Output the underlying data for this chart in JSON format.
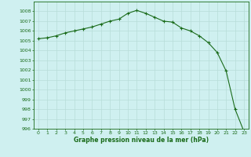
{
  "x": [
    0,
    1,
    2,
    3,
    4,
    5,
    6,
    7,
    8,
    9,
    10,
    11,
    12,
    13,
    14,
    15,
    16,
    17,
    18,
    19,
    20,
    21,
    22,
    23
  ],
  "y": [
    1005.2,
    1005.3,
    1005.5,
    1005.8,
    1006.0,
    1006.2,
    1006.4,
    1006.7,
    1007.0,
    1007.2,
    1007.8,
    1008.1,
    1007.8,
    1007.4,
    1007.0,
    1006.9,
    1006.3,
    1006.0,
    1005.5,
    1004.8,
    1003.8,
    1001.9,
    998.0,
    995.7
  ],
  "xlim": [
    -0.5,
    23.5
  ],
  "ylim": [
    996,
    1009
  ],
  "yticks": [
    996,
    997,
    998,
    999,
    1000,
    1001,
    1002,
    1003,
    1004,
    1005,
    1006,
    1007,
    1008
  ],
  "xticks": [
    0,
    1,
    2,
    3,
    4,
    5,
    6,
    7,
    8,
    9,
    10,
    11,
    12,
    13,
    14,
    15,
    16,
    17,
    18,
    19,
    20,
    21,
    22,
    23
  ],
  "xlabel": "Graphe pression niveau de la mer (hPa)",
  "line_color": "#1a6b1a",
  "marker_color": "#1a6b1a",
  "bg_color": "#cff0f0",
  "grid_color": "#b8ddd8",
  "tick_color": "#1a6b1a",
  "xlabel_color": "#1a6b1a",
  "figsize": [
    3.2,
    2.0
  ],
  "dpi": 100
}
